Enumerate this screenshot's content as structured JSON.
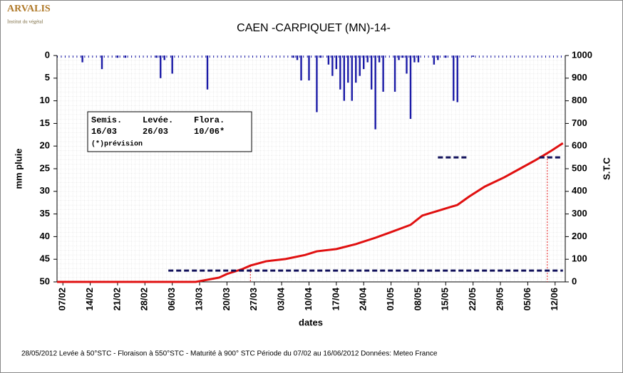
{
  "logo": {
    "name": "ARVALIS",
    "tagline": "Institut du végétal"
  },
  "chart_data": {
    "type": "combo",
    "title": "CAEN -CARPIQUET (MN)-14-",
    "x_label": "dates",
    "y_label": "mm pluie",
    "y2_label": "S.T.C",
    "xlim": [
      -1.5,
      128.6
    ],
    "xticks": [
      {
        "value": 0,
        "label": "07/02"
      },
      {
        "value": 7,
        "label": "14/02"
      },
      {
        "value": 14,
        "label": "21/02"
      },
      {
        "value": 21,
        "label": "28/02"
      },
      {
        "value": 28,
        "label": "06/03"
      },
      {
        "value": 35,
        "label": "13/03"
      },
      {
        "value": 42,
        "label": "20/03"
      },
      {
        "value": 49,
        "label": "27/03"
      },
      {
        "value": 56,
        "label": "03/04"
      },
      {
        "value": 63,
        "label": "10/04"
      },
      {
        "value": 70,
        "label": "17/04"
      },
      {
        "value": 77,
        "label": "24/04"
      },
      {
        "value": 84,
        "label": "01/05"
      },
      {
        "value": 91,
        "label": "08/05"
      },
      {
        "value": 98,
        "label": "15/05"
      },
      {
        "value": 105,
        "label": "22/05"
      },
      {
        "value": 112,
        "label": "29/05"
      },
      {
        "value": 119,
        "label": "05/06"
      },
      {
        "value": 126,
        "label": "12/06"
      }
    ],
    "ylim": [
      0,
      50
    ],
    "y_inverted": true,
    "yticks": [
      0,
      5,
      10,
      15,
      20,
      25,
      30,
      35,
      40,
      45,
      50
    ],
    "y2lim": [
      0,
      1000
    ],
    "y2ticks": [
      0,
      100,
      200,
      300,
      400,
      500,
      600,
      700,
      800,
      900,
      1000
    ],
    "grid": true,
    "series": [
      {
        "kind": "bar",
        "color": "#1a1aa6",
        "x": [
          5,
          10,
          14,
          16,
          24,
          25,
          26,
          28,
          37,
          59,
          60,
          61,
          63,
          65,
          66,
          68,
          69,
          70,
          71,
          72,
          73,
          74,
          75,
          76,
          77,
          78,
          79,
          80,
          81,
          82,
          85,
          86,
          87,
          88,
          89,
          90,
          91,
          95,
          96,
          98,
          100,
          101,
          105
        ],
        "values": [
          1.5,
          3,
          0.5,
          0.5,
          0.5,
          5,
          1,
          4,
          7.5,
          0.5,
          1,
          5.5,
          5.5,
          12.5,
          0.5,
          2,
          4.5,
          3,
          7.5,
          10,
          6,
          10,
          6,
          4.5,
          3,
          1.5,
          7.5,
          16.3,
          1.5,
          8,
          8,
          1,
          0.5,
          4,
          14,
          1.5,
          1.5,
          2,
          1,
          0.5,
          10,
          10.3,
          0.3
        ]
      },
      {
        "kind": "line",
        "axis": "y2",
        "color": "#e01010",
        "x": [
          -1.5,
          34,
          40,
          42,
          46,
          48,
          52,
          57,
          62,
          65,
          70,
          75,
          80,
          84,
          89,
          92,
          96,
          101,
          104,
          108,
          113,
          117,
          121,
          125,
          128
        ],
        "values": [
          0,
          0,
          19,
          35,
          57,
          72,
          91,
          101,
          119,
          135,
          145,
          167,
          195,
          220,
          252,
          293,
          314,
          340,
          377,
          421,
          462,
          500,
          538,
          579,
          613
        ]
      },
      {
        "kind": "dashed",
        "axis": "y2",
        "color": "#10105a",
        "x": [
          27,
          128
        ],
        "values": [
          50,
          50
        ]
      },
      {
        "kind": "dashed",
        "axis": "y2",
        "color": "#10105a",
        "x": [
          96,
          104
        ],
        "values": [
          550,
          550
        ]
      },
      {
        "kind": "dashed",
        "axis": "y2",
        "color": "#10105a",
        "x": [
          122,
          128
        ],
        "values": [
          550,
          550
        ]
      }
    ],
    "markers": {
      "color": "#e01010",
      "x": [
        48,
        124
      ]
    },
    "stages": {
      "headers": [
        "Semis.",
        "Levée.",
        "Flora."
      ],
      "dates": [
        "16/03",
        "26/03",
        "10/06*"
      ],
      "note": "(*)prévision"
    },
    "footer": "28/05/2012 Levée à 50°STC - Floraison à 550°STC - Maturité à 900° STC  Période du 07/02 au 16/06/2012 Données: Meteo France"
  }
}
